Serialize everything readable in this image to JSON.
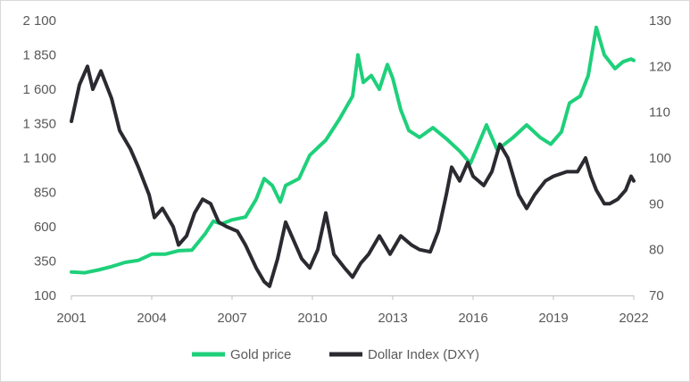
{
  "chart_data": {
    "type": "line",
    "title": "",
    "xlabel": "",
    "ylabel_left": "",
    "ylabel_right": "",
    "x_ticks": [
      2001,
      2004,
      2007,
      2010,
      2013,
      2016,
      2019,
      2022
    ],
    "x_tick_labels": [
      "2001",
      "2004",
      "2007",
      "2010",
      "2013",
      "2016",
      "2019",
      "2022"
    ],
    "xlim": [
      2001,
      2022
    ],
    "y_left_ticks": [
      100,
      350,
      600,
      850,
      1100,
      1350,
      1600,
      1850,
      2100
    ],
    "y_left_tick_labels": [
      "100",
      "350",
      "600",
      "850",
      "1 100",
      "1 350",
      "1 600",
      "1 850",
      "2 100"
    ],
    "y_left_lim": [
      100,
      2100
    ],
    "y_right_ticks": [
      70,
      80,
      90,
      100,
      110,
      120,
      130
    ],
    "y_right_tick_labels": [
      "70",
      "80",
      "90",
      "100",
      "110",
      "120",
      "130"
    ],
    "y_right_lim": [
      70,
      130
    ],
    "grid": false,
    "legend_position": "bottom",
    "series": [
      {
        "name": "Gold price",
        "axis": "left",
        "color": "#1ed07a",
        "points": [
          [
            2001.0,
            270
          ],
          [
            2001.5,
            265
          ],
          [
            2002.0,
            285
          ],
          [
            2002.5,
            310
          ],
          [
            2003.0,
            340
          ],
          [
            2003.5,
            355
          ],
          [
            2004.0,
            400
          ],
          [
            2004.5,
            400
          ],
          [
            2005.0,
            425
          ],
          [
            2005.5,
            430
          ],
          [
            2006.0,
            550
          ],
          [
            2006.3,
            640
          ],
          [
            2006.6,
            620
          ],
          [
            2007.0,
            650
          ],
          [
            2007.5,
            670
          ],
          [
            2007.9,
            800
          ],
          [
            2008.2,
            950
          ],
          [
            2008.5,
            900
          ],
          [
            2008.8,
            780
          ],
          [
            2009.0,
            900
          ],
          [
            2009.5,
            950
          ],
          [
            2009.9,
            1120
          ],
          [
            2010.5,
            1230
          ],
          [
            2011.0,
            1380
          ],
          [
            2011.5,
            1550
          ],
          [
            2011.7,
            1850
          ],
          [
            2011.9,
            1650
          ],
          [
            2012.2,
            1700
          ],
          [
            2012.5,
            1600
          ],
          [
            2012.8,
            1780
          ],
          [
            2013.0,
            1680
          ],
          [
            2013.3,
            1450
          ],
          [
            2013.6,
            1300
          ],
          [
            2014.0,
            1250
          ],
          [
            2014.5,
            1320
          ],
          [
            2015.0,
            1240
          ],
          [
            2015.5,
            1150
          ],
          [
            2015.9,
            1060
          ],
          [
            2016.5,
            1340
          ],
          [
            2016.9,
            1160
          ],
          [
            2017.5,
            1250
          ],
          [
            2018.0,
            1340
          ],
          [
            2018.5,
            1250
          ],
          [
            2018.9,
            1200
          ],
          [
            2019.3,
            1290
          ],
          [
            2019.6,
            1500
          ],
          [
            2020.0,
            1550
          ],
          [
            2020.3,
            1700
          ],
          [
            2020.6,
            2050
          ],
          [
            2020.9,
            1850
          ],
          [
            2021.3,
            1750
          ],
          [
            2021.6,
            1800
          ],
          [
            2021.9,
            1820
          ],
          [
            2022.0,
            1810
          ]
        ]
      },
      {
        "name": "Dollar Index (DXY)",
        "axis": "right",
        "color": "#2b2a30",
        "points": [
          [
            2001.0,
            108
          ],
          [
            2001.3,
            116
          ],
          [
            2001.6,
            120
          ],
          [
            2001.8,
            115
          ],
          [
            2002.1,
            119
          ],
          [
            2002.5,
            113
          ],
          [
            2002.8,
            106
          ],
          [
            2003.2,
            102
          ],
          [
            2003.5,
            98
          ],
          [
            2003.9,
            92
          ],
          [
            2004.1,
            87
          ],
          [
            2004.4,
            89
          ],
          [
            2004.8,
            85
          ],
          [
            2005.0,
            81
          ],
          [
            2005.3,
            83
          ],
          [
            2005.6,
            88
          ],
          [
            2005.9,
            91
          ],
          [
            2006.2,
            90
          ],
          [
            2006.5,
            86
          ],
          [
            2006.8,
            85
          ],
          [
            2007.2,
            84
          ],
          [
            2007.5,
            81
          ],
          [
            2007.9,
            76
          ],
          [
            2008.2,
            73
          ],
          [
            2008.4,
            72
          ],
          [
            2008.7,
            78
          ],
          [
            2009.0,
            86
          ],
          [
            2009.3,
            82
          ],
          [
            2009.6,
            78
          ],
          [
            2009.9,
            76
          ],
          [
            2010.2,
            80
          ],
          [
            2010.5,
            88
          ],
          [
            2010.8,
            79
          ],
          [
            2011.2,
            76
          ],
          [
            2011.5,
            74
          ],
          [
            2011.8,
            77
          ],
          [
            2012.1,
            79
          ],
          [
            2012.5,
            83
          ],
          [
            2012.9,
            79
          ],
          [
            2013.3,
            83
          ],
          [
            2013.7,
            81
          ],
          [
            2014.0,
            80
          ],
          [
            2014.4,
            79.5
          ],
          [
            2014.7,
            84
          ],
          [
            2015.0,
            92
          ],
          [
            2015.2,
            98
          ],
          [
            2015.5,
            95
          ],
          [
            2015.8,
            99
          ],
          [
            2016.0,
            96
          ],
          [
            2016.4,
            94
          ],
          [
            2016.7,
            97
          ],
          [
            2017.0,
            103
          ],
          [
            2017.3,
            100
          ],
          [
            2017.7,
            92
          ],
          [
            2018.0,
            89
          ],
          [
            2018.3,
            92
          ],
          [
            2018.7,
            95
          ],
          [
            2019.0,
            96
          ],
          [
            2019.5,
            97
          ],
          [
            2019.9,
            97
          ],
          [
            2020.2,
            100
          ],
          [
            2020.4,
            96
          ],
          [
            2020.6,
            93
          ],
          [
            2020.9,
            90
          ],
          [
            2021.1,
            90
          ],
          [
            2021.4,
            91
          ],
          [
            2021.7,
            93
          ],
          [
            2021.9,
            96
          ],
          [
            2022.0,
            95
          ]
        ]
      }
    ]
  }
}
